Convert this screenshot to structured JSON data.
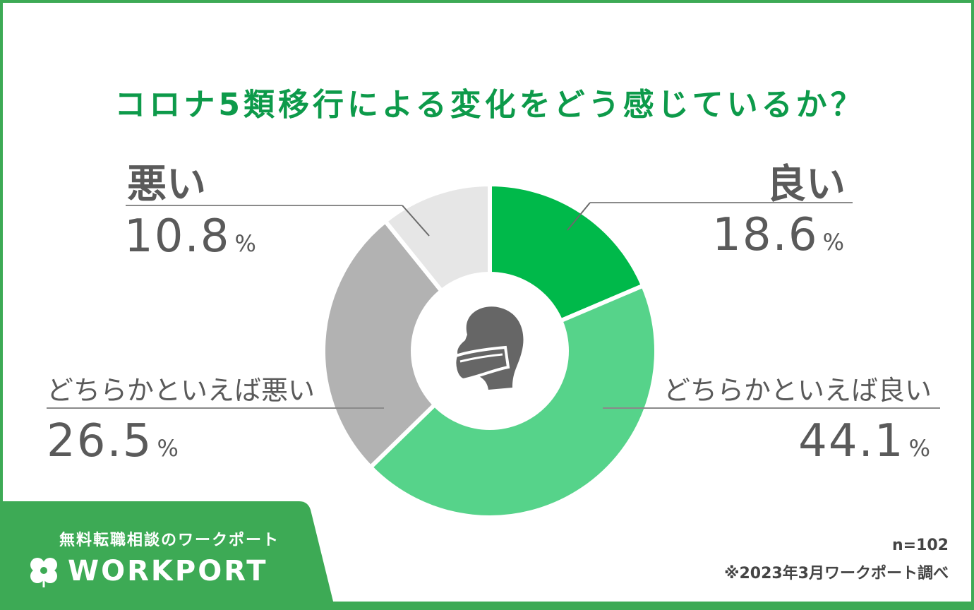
{
  "title": "コロナ5類移行による変化をどう感じているか？",
  "chart_data": {
    "type": "pie",
    "donut": true,
    "slices": [
      {
        "label": "良い",
        "value": 18.6,
        "color": "#00b94a"
      },
      {
        "label": "どちらかといえば良い",
        "value": 44.1,
        "color": "#56d38a"
      },
      {
        "label": "どちらかといえば悪い",
        "value": 26.5,
        "color": "#b2b2b2"
      },
      {
        "label": "悪い",
        "value": 10.8,
        "color": "#e6e6e6"
      }
    ],
    "unit": "%",
    "center_icon": "masked-person-icon"
  },
  "labels": {
    "good": {
      "label": "良い",
      "value": "18.6",
      "unit": "%"
    },
    "somewhat_good": {
      "label": "どちらかといえば良い",
      "value": "44.1",
      "unit": "%"
    },
    "somewhat_bad": {
      "label": "どちらかといえば悪い",
      "value": "26.5",
      "unit": "%"
    },
    "bad": {
      "label": "悪い",
      "value": "10.8",
      "unit": "%"
    }
  },
  "footer": {
    "tagline": "無料転職相談のワークポート",
    "brand": "WORKPORT",
    "logo_icon": "clover-icon",
    "sample_size": "n=102",
    "source": "※2023年3月ワークポート調べ"
  },
  "colors": {
    "title": "#0d9a4a",
    "frame": "#3daa55",
    "text": "#5a5a5a"
  }
}
